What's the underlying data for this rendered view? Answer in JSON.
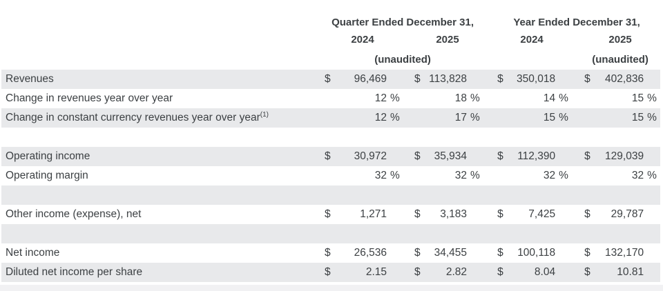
{
  "colors": {
    "row_shade": "#e8e9eb",
    "text_color": "#3c4043",
    "bottom_strip": "#f1f1f3"
  },
  "table": {
    "header": {
      "quarter_title": "Quarter Ended December 31,",
      "year_title": "Year Ended December 31,",
      "quarter_year_2024": "2024",
      "quarter_year_2025": "2025",
      "year_year_2024": "2024",
      "year_year_2025": "2025",
      "quarter_unaudited": "(unaudited)",
      "year_unaudited": "(unaudited)"
    },
    "rows": [
      {
        "type": "data",
        "shaded": true,
        "label": "Revenues",
        "footnote": "",
        "cells": [
          {
            "cur": "$",
            "val": "96,469",
            "pct": ""
          },
          {
            "cur": "$",
            "val": "113,828",
            "pct": ""
          },
          {
            "cur": "$",
            "val": "350,018",
            "pct": ""
          },
          {
            "cur": "$",
            "val": "402,836",
            "pct": ""
          }
        ]
      },
      {
        "type": "data",
        "shaded": false,
        "label": "Change in revenues year over year",
        "footnote": "",
        "cells": [
          {
            "cur": "",
            "val": "12",
            "pct": "%"
          },
          {
            "cur": "",
            "val": "18",
            "pct": "%"
          },
          {
            "cur": "",
            "val": "14",
            "pct": "%"
          },
          {
            "cur": "",
            "val": "15",
            "pct": "%"
          }
        ]
      },
      {
        "type": "data",
        "shaded": true,
        "label": "Change in constant currency revenues year over year",
        "footnote": "(1)",
        "cells": [
          {
            "cur": "",
            "val": "12",
            "pct": "%"
          },
          {
            "cur": "",
            "val": "17",
            "pct": "%"
          },
          {
            "cur": "",
            "val": "15",
            "pct": "%"
          },
          {
            "cur": "",
            "val": "15",
            "pct": "%"
          }
        ]
      },
      {
        "type": "spacer",
        "shaded": false
      },
      {
        "type": "data",
        "shaded": true,
        "label": "Operating income",
        "footnote": "",
        "cells": [
          {
            "cur": "$",
            "val": "30,972",
            "pct": ""
          },
          {
            "cur": "$",
            "val": "35,934",
            "pct": ""
          },
          {
            "cur": "$",
            "val": "112,390",
            "pct": ""
          },
          {
            "cur": "$",
            "val": "129,039",
            "pct": ""
          }
        ]
      },
      {
        "type": "data",
        "shaded": false,
        "label": "Operating margin",
        "footnote": "",
        "cells": [
          {
            "cur": "",
            "val": "32",
            "pct": "%"
          },
          {
            "cur": "",
            "val": "32",
            "pct": "%"
          },
          {
            "cur": "",
            "val": "32",
            "pct": "%"
          },
          {
            "cur": "",
            "val": "32",
            "pct": "%"
          }
        ]
      },
      {
        "type": "spacer",
        "shaded": true
      },
      {
        "type": "data",
        "shaded": false,
        "label": "Other income (expense), net",
        "footnote": "",
        "cells": [
          {
            "cur": "$",
            "val": "1,271",
            "pct": ""
          },
          {
            "cur": "$",
            "val": "3,183",
            "pct": ""
          },
          {
            "cur": "$",
            "val": "7,425",
            "pct": ""
          },
          {
            "cur": "$",
            "val": "29,787",
            "pct": ""
          }
        ]
      },
      {
        "type": "spacer",
        "shaded": true
      },
      {
        "type": "data",
        "shaded": false,
        "label": "Net income",
        "footnote": "",
        "cells": [
          {
            "cur": "$",
            "val": "26,536",
            "pct": ""
          },
          {
            "cur": "$",
            "val": "34,455",
            "pct": ""
          },
          {
            "cur": "$",
            "val": "100,118",
            "pct": ""
          },
          {
            "cur": "$",
            "val": "132,170",
            "pct": ""
          }
        ]
      },
      {
        "type": "data",
        "shaded": true,
        "label": "Diluted net income per share",
        "footnote": "",
        "cells": [
          {
            "cur": "$",
            "val": "2.15",
            "pct": ""
          },
          {
            "cur": "$",
            "val": "2.82",
            "pct": ""
          },
          {
            "cur": "$",
            "val": "8.04",
            "pct": ""
          },
          {
            "cur": "$",
            "val": "10.81",
            "pct": ""
          }
        ]
      }
    ]
  }
}
